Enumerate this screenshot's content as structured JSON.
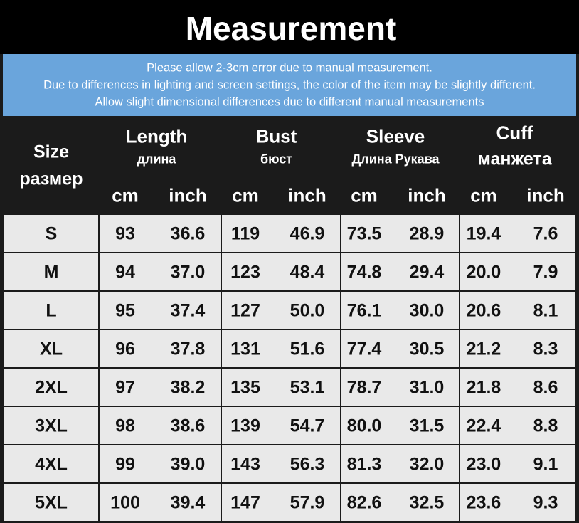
{
  "header": {
    "title": "Measurement",
    "notes": [
      "Please allow 2-3cm error due to manual measurement.",
      "Due to differences in lighting and screen settings, the color of the item may be slightly different.",
      "Allow slight dimensional differences due to different manual measurements"
    ]
  },
  "table": {
    "size_header": [
      "Size",
      "размер"
    ],
    "groups": [
      {
        "name": "Length",
        "sub": "длина",
        "units": [
          "cm",
          "inch"
        ]
      },
      {
        "name": "Bust",
        "sub": "бюст",
        "units": [
          "cm",
          "inch"
        ]
      },
      {
        "name": "Sleeve",
        "sub": "Длина Рукава",
        "units": [
          "cm",
          "inch"
        ]
      },
      {
        "name": "Cuff",
        "sub": "манжета",
        "units": [
          "cm",
          "inch"
        ]
      }
    ],
    "rows": [
      [
        "S",
        "93",
        "36.6",
        "119",
        "46.9",
        "73.5",
        "28.9",
        "19.4",
        "7.6"
      ],
      [
        "M",
        "94",
        "37.0",
        "123",
        "48.4",
        "74.8",
        "29.4",
        "20.0",
        "7.9"
      ],
      [
        "L",
        "95",
        "37.4",
        "127",
        "50.0",
        "76.1",
        "30.0",
        "20.6",
        "8.1"
      ],
      [
        "XL",
        "96",
        "37.8",
        "131",
        "51.6",
        "77.4",
        "30.5",
        "21.2",
        "8.3"
      ],
      [
        "2XL",
        "97",
        "38.2",
        "135",
        "53.1",
        "78.7",
        "31.0",
        "21.8",
        "8.6"
      ],
      [
        "3XL",
        "98",
        "38.6",
        "139",
        "54.7",
        "80.0",
        "31.5",
        "22.4",
        "8.8"
      ],
      [
        "4XL",
        "99",
        "39.0",
        "143",
        "56.3",
        "81.3",
        "32.0",
        "23.0",
        "9.1"
      ],
      [
        "5XL",
        "100",
        "39.4",
        "147",
        "57.9",
        "82.6",
        "32.5",
        "23.6",
        "9.3"
      ]
    ]
  }
}
